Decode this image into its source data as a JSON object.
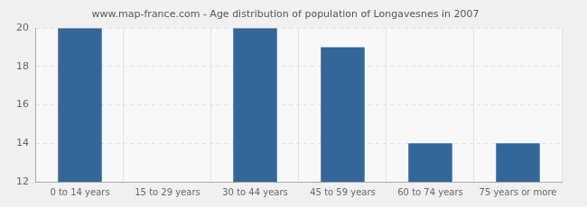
{
  "chart_data": {
    "type": "bar",
    "title": "www.map-france.com - Age distribution of population of Longavesnes in 2007",
    "categories": [
      "0 to 14 years",
      "15 to 29 years",
      "30 to 44 years",
      "45 to 59 years",
      "60 to 74 years",
      "75 years or more"
    ],
    "values": [
      20,
      12,
      20,
      19,
      14,
      14
    ],
    "color": "#336699",
    "ylim": [
      12,
      20
    ],
    "yticks": [
      12,
      14,
      16,
      18,
      20
    ],
    "grid": true
  }
}
